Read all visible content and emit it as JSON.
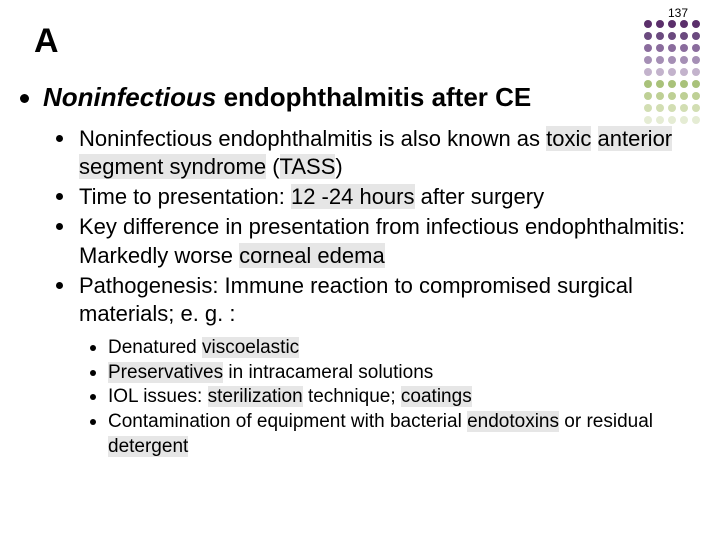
{
  "page_number": "137",
  "title": "A",
  "heading": {
    "italic_part": "Noninfectious",
    "rest": " endophthalmitis after CE"
  },
  "bullets_l2": [
    {
      "segments": [
        {
          "t": "Noninfectious endophthalmitis is also known as ",
          "hl": false
        },
        {
          "t": "toxic",
          "hl": true
        },
        {
          "t": " ",
          "hl": false
        },
        {
          "t": "anterior segment syndrome",
          "hl": true
        },
        {
          "t": " (",
          "hl": false
        },
        {
          "t": "TASS",
          "hl": true
        },
        {
          "t": ")",
          "hl": false
        }
      ]
    },
    {
      "segments": [
        {
          "t": "Time to presentation: ",
          "hl": false
        },
        {
          "t": "12 -24 hours",
          "hl": true
        },
        {
          "t": " after surgery",
          "hl": false
        }
      ]
    },
    {
      "segments": [
        {
          "t": "Key difference in presentation from infectious endophthalmitis: Markedly worse ",
          "hl": false
        },
        {
          "t": "corneal edema",
          "hl": true
        }
      ]
    },
    {
      "segments": [
        {
          "t": "Pathogenesis: Immune reaction to compromised surgical materials; e. g. :",
          "hl": false
        }
      ]
    }
  ],
  "bullets_l3": [
    {
      "segments": [
        {
          "t": "Denatured ",
          "hl": false
        },
        {
          "t": "viscoelastic",
          "hl": true
        }
      ]
    },
    {
      "segments": [
        {
          "t": "Preservatives",
          "hl": true
        },
        {
          "t": " in intracameral solutions",
          "hl": false
        }
      ]
    },
    {
      "segments": [
        {
          "t": "IOL issues: ",
          "hl": false
        },
        {
          "t": "sterilization",
          "hl": true
        },
        {
          "t": " technique; ",
          "hl": false
        },
        {
          "t": "coatings",
          "hl": true
        }
      ]
    },
    {
      "segments": [
        {
          "t": "Contamination of equipment with bacterial ",
          "hl": false
        },
        {
          "t": "endotoxins",
          "hl": true
        },
        {
          "t": " or residual ",
          "hl": false
        },
        {
          "t": "detergent",
          "hl": true
        }
      ]
    }
  ],
  "highlight_color": "#e6e6e6",
  "dot_colors": [
    "#5b2f6b",
    "#5b2f6b",
    "#5b2f6b",
    "#5b2f6b",
    "#5b2f6b",
    "#6b4a7f",
    "#6b4a7f",
    "#6b4a7f",
    "#6b4a7f",
    "#6b4a7f",
    "#8a6c9d",
    "#8a6c9d",
    "#8a6c9d",
    "#8a6c9d",
    "#8a6c9d",
    "#a58fb5",
    "#a58fb5",
    "#a58fb5",
    "#a58fb5",
    "#a58fb5",
    "#c3b3cc",
    "#c3b3cc",
    "#c3b3cc",
    "#c3b3cc",
    "#c3b3cc",
    "#a9c27a",
    "#a9c27a",
    "#a9c27a",
    "#a9c27a",
    "#a9c27a",
    "#bed095",
    "#bed095",
    "#bed095",
    "#bed095",
    "#bed095",
    "#d2deb3",
    "#d2deb3",
    "#d2deb3",
    "#d2deb3",
    "#d2deb3",
    "#e5ecd4",
    "#e5ecd4",
    "#e5ecd4",
    "#e5ecd4",
    "#e5ecd4"
  ]
}
